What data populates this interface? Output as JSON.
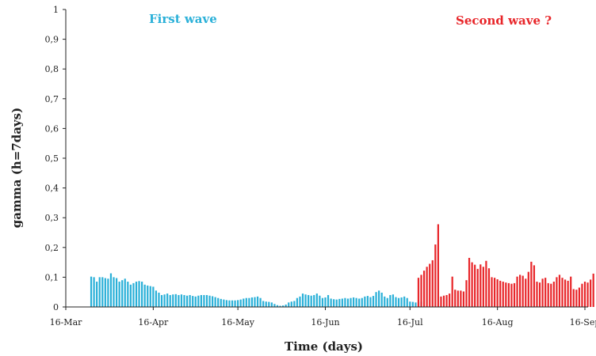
{
  "chart_data": {
    "type": "bar",
    "xlabel": "Time (days)",
    "ylabel": "gamma (h=7days)",
    "ylim": [
      0,
      1
    ],
    "yticks": [
      "0",
      "0,1",
      "0,2",
      "0,3",
      "0,4",
      "0,5",
      "0,6",
      "0,7",
      "0,8",
      "0,9",
      "1"
    ],
    "xticks": [
      "16-Mar",
      "16-Apr",
      "16-May",
      "16-Jun",
      "16-Jul",
      "16-Aug",
      "16-Sep"
    ],
    "grid": false,
    "annotations": [
      {
        "text": "First wave",
        "color": "#2ab0d8"
      },
      {
        "text": "Second wave ?",
        "color": "#e8262a"
      }
    ],
    "series": [
      {
        "color": "#2ab0d8",
        "x_start": "2020-03-25",
        "values": [
          0.102,
          0.1,
          0.085,
          0.1,
          0.1,
          0.097,
          0.095,
          0.113,
          0.1,
          0.097,
          0.085,
          0.09,
          0.095,
          0.085,
          0.075,
          0.08,
          0.085,
          0.087,
          0.085,
          0.075,
          0.072,
          0.07,
          0.068,
          0.055,
          0.048,
          0.04,
          0.042,
          0.045,
          0.04,
          0.042,
          0.043,
          0.04,
          0.042,
          0.04,
          0.038,
          0.04,
          0.037,
          0.035,
          0.038,
          0.04,
          0.04,
          0.04,
          0.038,
          0.036,
          0.033,
          0.03,
          0.027,
          0.025,
          0.023,
          0.022,
          0.022,
          0.022,
          0.023,
          0.025,
          0.028,
          0.03,
          0.03,
          0.032,
          0.033,
          0.035,
          0.03,
          0.02,
          0.018,
          0.017,
          0.015,
          0.01,
          0.006,
          0.004,
          0.005,
          0.008,
          0.015,
          0.018,
          0.02,
          0.03,
          0.035,
          0.045,
          0.042,
          0.04,
          0.038,
          0.04,
          0.045,
          0.038,
          0.03,
          0.032,
          0.04,
          0.028,
          0.026,
          0.025,
          0.027,
          0.028,
          0.03,
          0.028,
          0.03,
          0.032,
          0.03,
          0.028,
          0.03,
          0.035,
          0.037,
          0.033,
          0.037,
          0.05,
          0.055,
          0.048,
          0.035,
          0.03,
          0.04,
          0.042,
          0.033,
          0.03,
          0.032,
          0.035,
          0.03,
          0.018,
          0.017,
          0.015,
          0.017,
          0.018
        ]
      },
      {
        "color": "#e8262a",
        "x_start": "2020-07-19",
        "values": [
          0.098,
          0.108,
          0.122,
          0.135,
          0.145,
          0.157,
          0.21,
          0.278,
          0.035,
          0.038,
          0.04,
          0.045,
          0.102,
          0.058,
          0.055,
          0.055,
          0.052,
          0.09,
          0.165,
          0.15,
          0.142,
          0.128,
          0.143,
          0.135,
          0.155,
          0.13,
          0.1,
          0.098,
          0.093,
          0.088,
          0.085,
          0.082,
          0.08,
          0.078,
          0.08,
          0.102,
          0.108,
          0.105,
          0.095,
          0.118,
          0.152,
          0.14,
          0.085,
          0.082,
          0.095,
          0.098,
          0.08,
          0.078,
          0.085,
          0.1,
          0.108,
          0.098,
          0.092,
          0.088,
          0.102,
          0.06,
          0.058,
          0.065,
          0.078,
          0.085,
          0.082,
          0.092,
          0.112
        ]
      }
    ]
  }
}
